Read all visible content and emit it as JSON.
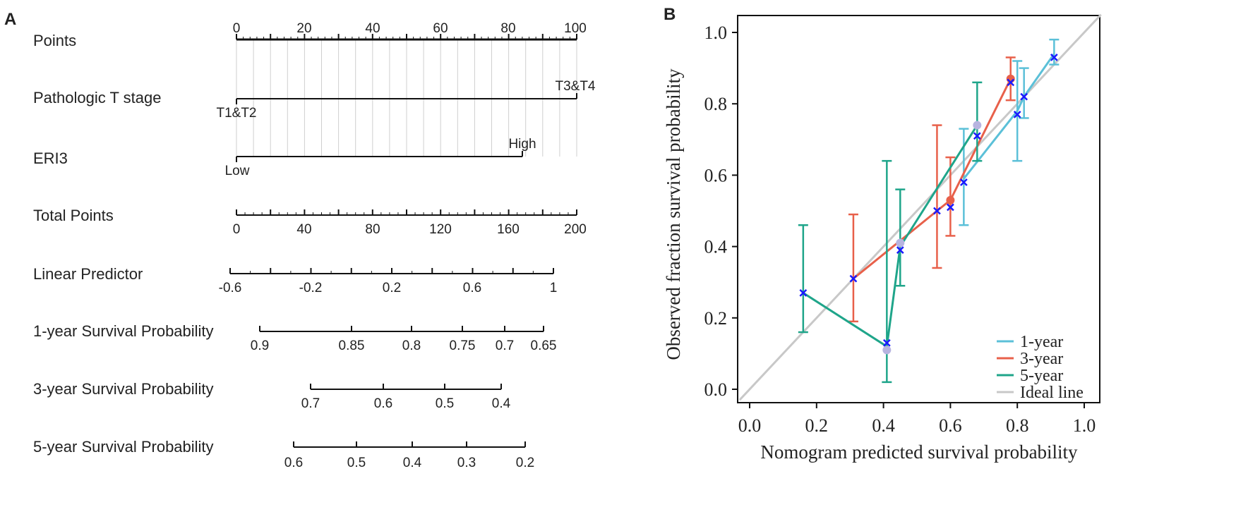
{
  "panel_a": {
    "label": "A",
    "rows": [
      {
        "key": "points",
        "label": "Points"
      },
      {
        "key": "t_stage",
        "label": "Pathologic T stage"
      },
      {
        "key": "eri3",
        "label": "ERI3"
      },
      {
        "key": "total",
        "label": "Total Points"
      },
      {
        "key": "lp",
        "label": "Linear Predictor"
      },
      {
        "key": "s1",
        "label": "1-year Survival Probability"
      },
      {
        "key": "s3",
        "label": "3-year Survival Probability"
      },
      {
        "key": "s5",
        "label": "5-year Survival Probability"
      }
    ],
    "points_ticks": [
      "0",
      "20",
      "40",
      "60",
      "80",
      "100"
    ],
    "t_stage": {
      "low": "T1&T2",
      "high": "T3&T4",
      "low_points": 0,
      "high_points": 100
    },
    "eri3": {
      "low": "Low",
      "high": "High",
      "low_points": 0,
      "high_points": 84
    },
    "total_ticks": [
      "0",
      "40",
      "80",
      "120",
      "160",
      "200"
    ],
    "lp_ticks": [
      "-0.6",
      "-0.2",
      "0.2",
      "0.6",
      "1"
    ],
    "s1_ticks": [
      "0.9",
      "0.85",
      "0.8",
      "0.75",
      "0.7",
      "0.65"
    ],
    "s3_ticks": [
      "0.7",
      "0.6",
      "0.5",
      "0.4"
    ],
    "s5_ticks": [
      "0.6",
      "0.5",
      "0.4",
      "0.3",
      "0.2"
    ]
  },
  "chart_data": {
    "type": "line",
    "panel_label": "B",
    "xlabel": "Nomogram predicted survival probability",
    "ylabel": "Observed fraction survival probability",
    "xlim": [
      0,
      1.0
    ],
    "ylim": [
      0,
      1.0
    ],
    "x_ticks": [
      "0.0",
      "0.2",
      "0.4",
      "0.6",
      "0.8",
      "1.0"
    ],
    "y_ticks": [
      "0.0",
      "0.2",
      "0.4",
      "0.6",
      "0.8",
      "1.0"
    ],
    "legend_position": "bottom-right",
    "series": [
      {
        "name": "1-year",
        "color": "#5bc0d8",
        "x": [
          0.64,
          0.8,
          0.82,
          0.91
        ],
        "y": [
          0.59,
          0.78,
          0.82,
          0.94
        ],
        "err_low": [
          0.46,
          0.64,
          0.76,
          0.91
        ],
        "err_high": [
          0.73,
          0.92,
          0.9,
          0.98
        ]
      },
      {
        "name": "3-year",
        "color": "#e8604a",
        "x": [
          0.31,
          0.56,
          0.6,
          0.78
        ],
        "y": [
          0.31,
          0.5,
          0.53,
          0.87
        ],
        "err_low": [
          0.19,
          0.34,
          0.43,
          0.81
        ],
        "err_high": [
          0.49,
          0.74,
          0.65,
          0.93
        ]
      },
      {
        "name": "5-year",
        "color": "#1fa58a",
        "x": [
          0.16,
          0.41,
          0.45,
          0.68
        ],
        "y": [
          0.27,
          0.12,
          0.4,
          0.74
        ],
        "err_low": [
          0.16,
          0.02,
          0.29,
          0.64
        ],
        "err_high": [
          0.46,
          0.64,
          0.56,
          0.86
        ]
      },
      {
        "name": "Ideal line",
        "color": "#c8c8c8",
        "x": [
          -0.03,
          1.05
        ],
        "y": [
          -0.03,
          1.05
        ]
      }
    ],
    "markers": {
      "x_points": {
        "color": "#1a1aff",
        "x": [
          0.16,
          0.31,
          0.41,
          0.45,
          0.56,
          0.6,
          0.64,
          0.68,
          0.78,
          0.8,
          0.82,
          0.91
        ],
        "y": [
          0.27,
          0.31,
          0.13,
          0.39,
          0.5,
          0.51,
          0.58,
          0.71,
          0.86,
          0.77,
          0.82,
          0.93
        ]
      },
      "filled_points": [
        {
          "x": 0.41,
          "y": 0.11,
          "color": "#b7b4e0"
        },
        {
          "x": 0.45,
          "y": 0.41,
          "color": "#b7b4e0"
        },
        {
          "x": 0.68,
          "y": 0.74,
          "color": "#b7b4e0"
        },
        {
          "x": 0.6,
          "y": 0.53,
          "color": "#e8604a"
        },
        {
          "x": 0.78,
          "y": 0.87,
          "color": "#e8604a"
        }
      ]
    }
  }
}
